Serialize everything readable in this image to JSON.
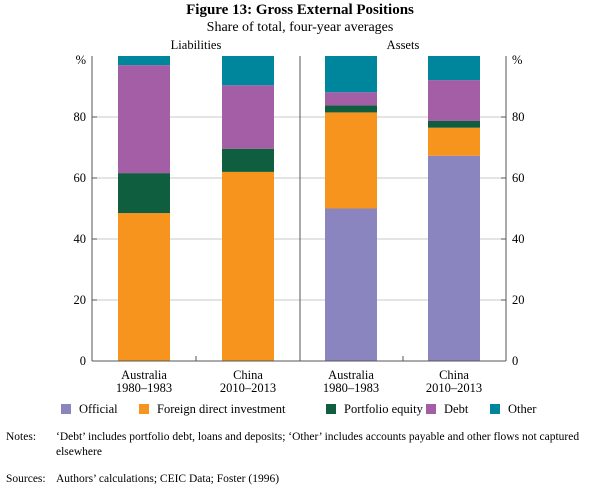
{
  "chart_data": {
    "type": "bar",
    "stacked": true,
    "title": "Figure 13: Gross External Positions",
    "subtitle": "Share of total, four-year averages",
    "panels": [
      "Liabilities",
      "Assets"
    ],
    "unit": "%",
    "ylim": [
      0,
      100
    ],
    "yticks": [
      0,
      20,
      40,
      60,
      80
    ],
    "grid": true,
    "legend_placement": "bottom",
    "categories": [
      {
        "panel": "Liabilities",
        "line1": "Australia",
        "line2": "1980–1983"
      },
      {
        "panel": "Liabilities",
        "line1": "China",
        "line2": "2010–2013"
      },
      {
        "panel": "Assets",
        "line1": "Australia",
        "line2": "1980–1983"
      },
      {
        "panel": "Assets",
        "line1": "China",
        "line2": "2010–2013"
      }
    ],
    "series": [
      {
        "name": "Official",
        "color": "#8a84bf",
        "values": [
          0,
          0,
          50.0,
          67.3
        ]
      },
      {
        "name": "Foreign direct investment",
        "color": "#f7941d",
        "values": [
          48.5,
          62.0,
          31.5,
          9.2
        ]
      },
      {
        "name": "Portfolio equity",
        "color": "#0f5e3f",
        "values": [
          13.1,
          7.6,
          2.3,
          2.2
        ]
      },
      {
        "name": "Debt",
        "color": "#a45ea5",
        "values": [
          35.4,
          20.8,
          4.3,
          13.4
        ]
      },
      {
        "name": "Other",
        "color": "#00869c",
        "values": [
          3.0,
          9.6,
          11.9,
          7.9
        ]
      }
    ]
  },
  "notes": {
    "notes_label": "Notes:",
    "notes_text": "‘Debt’ includes portfolio debt, loans and deposits; ‘Other’ includes accounts payable and other flows not captured elsewhere",
    "sources_label": "Sources:",
    "sources_text": "Authors’ calculations; CEIC Data; Foster (1996)"
  }
}
